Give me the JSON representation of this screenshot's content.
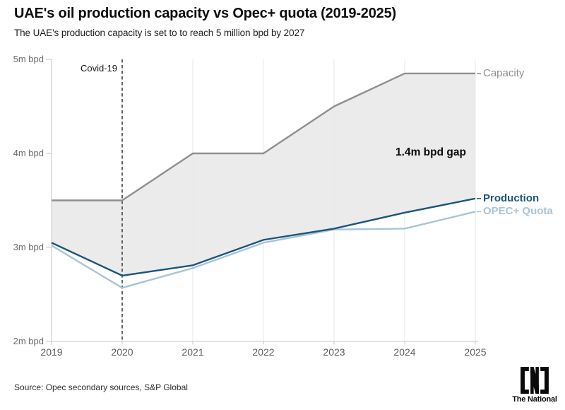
{
  "header": {
    "title": "UAE's oil production capacity vs Opec+ quota (2019-2025)",
    "subtitle": "The UAE's production capacity is set to to reach 5 million bpd by 2027"
  },
  "chart_data": {
    "type": "line",
    "title": "UAE's oil production capacity vs Opec+ quota (2019-2025)",
    "x": [
      2019,
      2020,
      2021,
      2022,
      2023,
      2024,
      2025
    ],
    "x_labels": [
      "2019",
      "2020",
      "2021",
      "2022",
      "2023",
      "2024",
      "2025"
    ],
    "xlim": [
      2019,
      2025
    ],
    "ylim": [
      2,
      5
    ],
    "y_unit": "m bpd",
    "y_ticks": [
      {
        "value": 5,
        "label": "5m bpd"
      },
      {
        "value": 4,
        "label": "4m bpd"
      },
      {
        "value": 3,
        "label": "3m bpd"
      },
      {
        "value": 2,
        "label": "2m bpd"
      }
    ],
    "grid": "vertical-only",
    "legend_position": "right-end-labels",
    "series": [
      {
        "name": "Capacity",
        "color": "#8f8f8f",
        "values": [
          3.5,
          3.5,
          4.0,
          4.0,
          4.5,
          4.85,
          4.85
        ]
      },
      {
        "name": "Production",
        "color": "#1b567a",
        "values": [
          3.05,
          2.7,
          2.81,
          3.08,
          3.2,
          3.37,
          3.52
        ]
      },
      {
        "name": "OPEC+ Quota",
        "color": "#a7c4d8",
        "values": [
          3.02,
          2.57,
          2.78,
          3.05,
          3.19,
          3.2,
          3.38
        ]
      }
    ],
    "area_fill": {
      "between": [
        "Capacity",
        "Production"
      ],
      "color": "#e7e7e7",
      "opacity": 0.85
    },
    "annotations": {
      "covid": {
        "text": "Covid-19",
        "x_year": 2020,
        "line_style": "dashed",
        "line_color": "#4a4a4a"
      },
      "gap": {
        "text": "1.4m bpd gap"
      }
    },
    "style": {
      "grid_color": "#e7e7e7",
      "axis_color": "#c6c6c6",
      "tick_label_color": "#6a6a6a"
    }
  },
  "footer": {
    "source": "Source: Opec secondary sources, S&P Global",
    "logo": {
      "text": "The National",
      "mark": "[N]"
    }
  }
}
